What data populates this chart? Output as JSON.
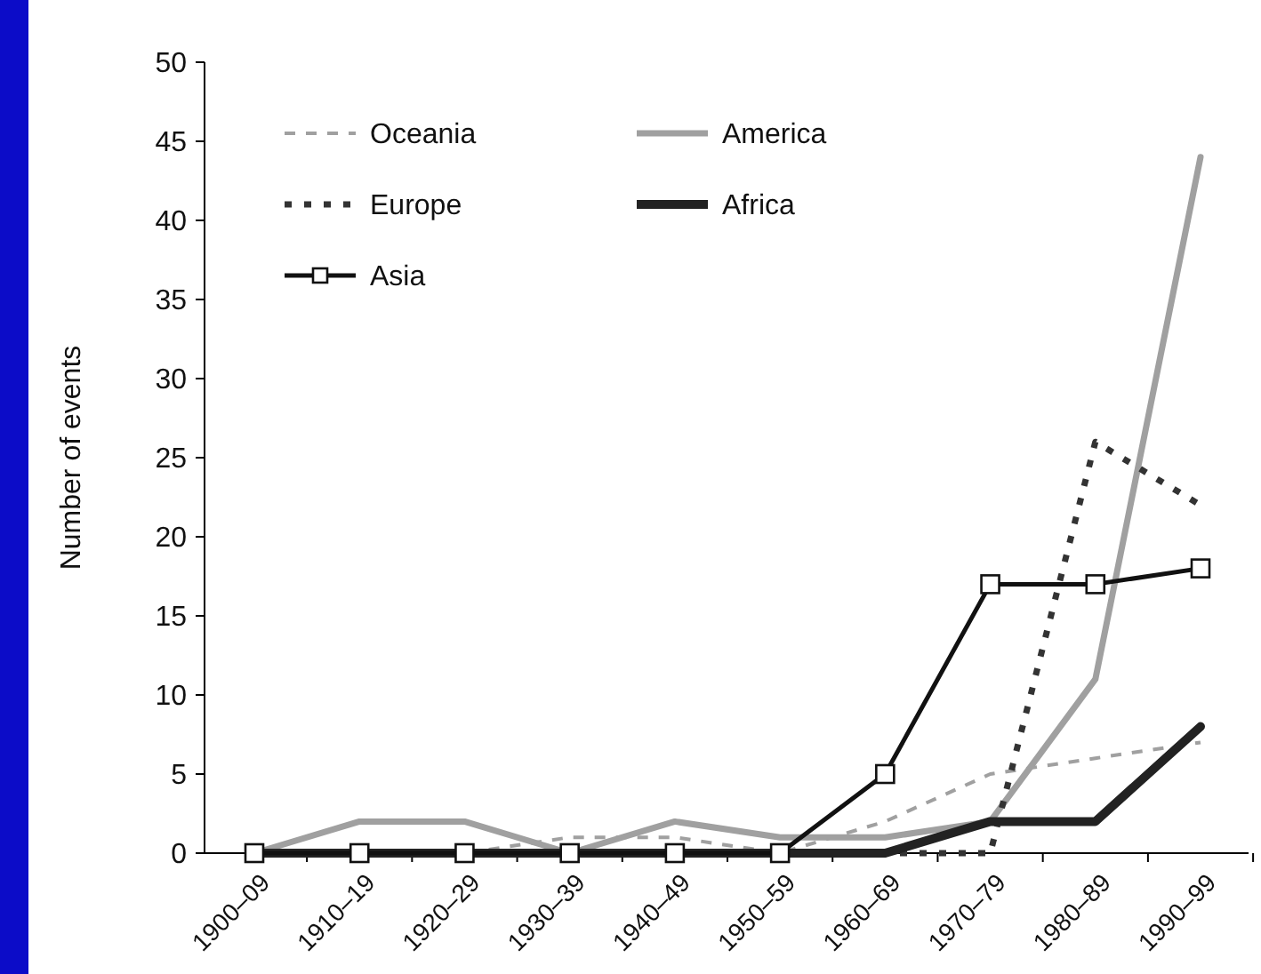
{
  "chart_data": {
    "type": "line",
    "ylabel": "Number of events",
    "categories": [
      "1900–09",
      "1910–19",
      "1920–29",
      "1930–39",
      "1940–49",
      "1950–59",
      "1960–69",
      "1970–79",
      "1980–89",
      "1990–99"
    ],
    "series": [
      {
        "name": "Oceania",
        "color": "#a0a0a0",
        "line_style": "dashed",
        "marker": "none",
        "values": [
          0,
          0,
          0,
          1,
          1,
          0,
          2,
          5,
          6,
          7
        ]
      },
      {
        "name": "America",
        "color": "#a0a0a0",
        "line_style": "solid",
        "marker": "none",
        "values": [
          0,
          2,
          2,
          0,
          2,
          1,
          1,
          2,
          11,
          44
        ]
      },
      {
        "name": "Europe",
        "color": "#333333",
        "line_style": "dotted",
        "marker": "none",
        "values": [
          0,
          0,
          0,
          0,
          0,
          0,
          0,
          0,
          26,
          22
        ]
      },
      {
        "name": "Africa",
        "color": "#222222",
        "line_style": "solid",
        "marker": "none",
        "values": [
          0,
          0,
          0,
          0,
          0,
          0,
          0,
          2,
          2,
          8
        ]
      },
      {
        "name": "Asia",
        "color": "#111111",
        "line_style": "solid",
        "marker": "square",
        "values": [
          0,
          0,
          0,
          0,
          0,
          0,
          5,
          17,
          17,
          18
        ]
      }
    ],
    "ylim": [
      0,
      50
    ],
    "yticks": [
      0,
      5,
      10,
      15,
      20,
      25,
      30,
      35,
      40,
      45,
      50
    ],
    "grid": false,
    "legend": "top left"
  }
}
